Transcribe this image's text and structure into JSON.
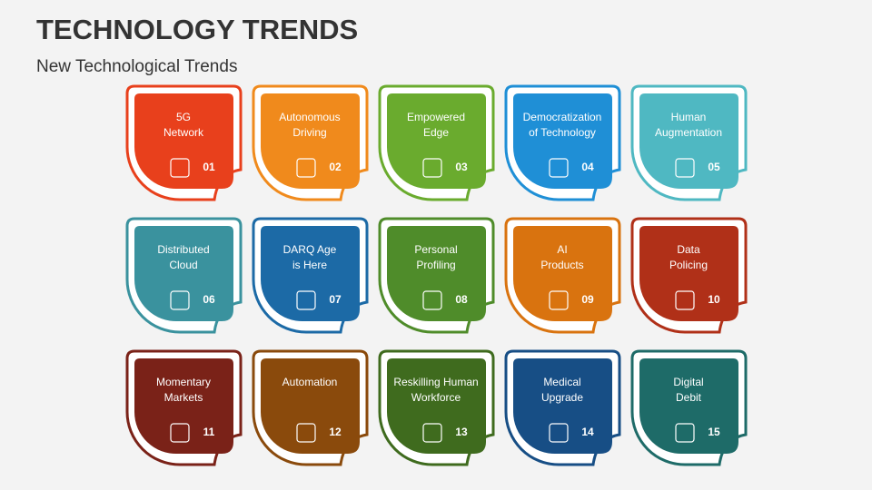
{
  "header": {
    "title": "TECHNOLOGY TRENDS",
    "subtitle": "New Technological Trends"
  },
  "cards": [
    {
      "label": [
        "5G",
        "Network"
      ],
      "number": "01",
      "color": "#e8401c"
    },
    {
      "label": [
        "Autonomous",
        "Driving"
      ],
      "number": "02",
      "color": "#f08a1c"
    },
    {
      "label": [
        "Empowered",
        "Edge"
      ],
      "number": "03",
      "color": "#6aab2e"
    },
    {
      "label": [
        "Democratization",
        "of Technology"
      ],
      "number": "04",
      "color": "#1f8fd6"
    },
    {
      "label": [
        "Human",
        "Augmentation"
      ],
      "number": "05",
      "color": "#4fb8c2"
    },
    {
      "label": [
        "Distributed",
        "Cloud"
      ],
      "number": "06",
      "color": "#3a929e"
    },
    {
      "label": [
        "DARQ Age",
        "is Here"
      ],
      "number": "07",
      "color": "#1c6aa6"
    },
    {
      "label": [
        "Personal",
        "Profiling"
      ],
      "number": "08",
      "color": "#4f8c2a"
    },
    {
      "label": [
        "AI",
        "Products"
      ],
      "number": "09",
      "color": "#d9730f"
    },
    {
      "label": [
        "Data",
        "Policing"
      ],
      "number": "10",
      "color": "#b03018"
    },
    {
      "label": [
        "Momentary",
        "Markets"
      ],
      "number": "11",
      "color": "#7a2218"
    },
    {
      "label": [
        "Automation"
      ],
      "number": "12",
      "color": "#8a4a0c"
    },
    {
      "label": [
        "Reskilling Human",
        "Workforce"
      ],
      "number": "13",
      "color": "#3f6b1e"
    },
    {
      "label": [
        "Medical",
        "Upgrade"
      ],
      "number": "14",
      "color": "#174e85"
    },
    {
      "label": [
        "Digital",
        "Debit"
      ],
      "number": "15",
      "color": "#1e6b68"
    }
  ]
}
